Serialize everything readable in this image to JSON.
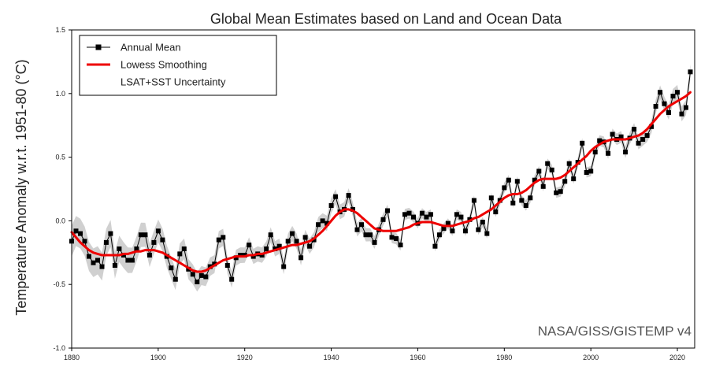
{
  "chart_data": {
    "type": "line",
    "title": "Global Mean Estimates based on Land and Ocean Data",
    "ylabel": "Temperature Anomaly w.r.t. 1951-80 (°C)",
    "xlabel": "",
    "credit": "NASA/GISS/GISTEMP v4",
    "xlim": [
      1880,
      2024
    ],
    "ylim": [
      -1.0,
      1.5
    ],
    "xticks": [
      1880,
      1900,
      1920,
      1940,
      1960,
      1980,
      2000,
      2020
    ],
    "yticks": [
      -1.0,
      -0.5,
      0.0,
      0.5,
      1.0,
      1.5
    ],
    "ytick_labels": [
      "-1.0",
      "-0.5",
      "0.0",
      "0.5",
      "1.0",
      "1.5"
    ],
    "grid": false,
    "legend": {
      "placement": "top-left",
      "entries": [
        "Annual Mean",
        "Lowess Smoothing",
        "LSAT+SST Uncertainty"
      ]
    },
    "colors": {
      "annual": "#000000",
      "lowess": "#ee0000",
      "uncertainty": "#d0d0d0"
    },
    "x": [
      1880,
      1881,
      1882,
      1883,
      1884,
      1885,
      1886,
      1887,
      1888,
      1889,
      1890,
      1891,
      1892,
      1893,
      1894,
      1895,
      1896,
      1897,
      1898,
      1899,
      1900,
      1901,
      1902,
      1903,
      1904,
      1905,
      1906,
      1907,
      1908,
      1909,
      1910,
      1911,
      1912,
      1913,
      1914,
      1915,
      1916,
      1917,
      1918,
      1919,
      1920,
      1921,
      1922,
      1923,
      1924,
      1925,
      1926,
      1927,
      1928,
      1929,
      1930,
      1931,
      1932,
      1933,
      1934,
      1935,
      1936,
      1937,
      1938,
      1939,
      1940,
      1941,
      1942,
      1943,
      1944,
      1945,
      1946,
      1947,
      1948,
      1949,
      1950,
      1951,
      1952,
      1953,
      1954,
      1955,
      1956,
      1957,
      1958,
      1959,
      1960,
      1961,
      1962,
      1963,
      1964,
      1965,
      1966,
      1967,
      1968,
      1969,
      1970,
      1971,
      1972,
      1973,
      1974,
      1975,
      1976,
      1977,
      1978,
      1979,
      1980,
      1981,
      1982,
      1983,
      1984,
      1985,
      1986,
      1987,
      1988,
      1989,
      1990,
      1991,
      1992,
      1993,
      1994,
      1995,
      1996,
      1997,
      1998,
      1999,
      2000,
      2001,
      2002,
      2003,
      2004,
      2005,
      2006,
      2007,
      2008,
      2009,
      2010,
      2011,
      2012,
      2013,
      2014,
      2015,
      2016,
      2017,
      2018,
      2019,
      2020,
      2021,
      2022,
      2023
    ],
    "series": [
      {
        "name": "Annual Mean",
        "values": [
          -0.16,
          -0.08,
          -0.1,
          -0.16,
          -0.28,
          -0.33,
          -0.31,
          -0.36,
          -0.17,
          -0.1,
          -0.35,
          -0.22,
          -0.27,
          -0.31,
          -0.31,
          -0.22,
          -0.11,
          -0.11,
          -0.27,
          -0.17,
          -0.08,
          -0.15,
          -0.28,
          -0.37,
          -0.46,
          -0.26,
          -0.22,
          -0.38,
          -0.42,
          -0.48,
          -0.43,
          -0.44,
          -0.36,
          -0.34,
          -0.15,
          -0.13,
          -0.35,
          -0.46,
          -0.29,
          -0.27,
          -0.27,
          -0.19,
          -0.28,
          -0.26,
          -0.27,
          -0.22,
          -0.11,
          -0.22,
          -0.2,
          -0.36,
          -0.16,
          -0.1,
          -0.16,
          -0.29,
          -0.13,
          -0.2,
          -0.15,
          -0.03,
          -0.0,
          -0.02,
          0.12,
          0.19,
          0.07,
          0.09,
          0.2,
          0.09,
          -0.07,
          -0.03,
          -0.11,
          -0.11,
          -0.17,
          -0.07,
          0.01,
          0.08,
          -0.13,
          -0.14,
          -0.19,
          0.05,
          0.06,
          0.03,
          -0.02,
          0.06,
          0.03,
          0.05,
          -0.2,
          -0.11,
          -0.06,
          -0.02,
          -0.08,
          0.05,
          0.03,
          -0.08,
          0.01,
          0.16,
          -0.07,
          -0.01,
          -0.1,
          0.18,
          0.07,
          0.16,
          0.26,
          0.32,
          0.14,
          0.31,
          0.16,
          0.12,
          0.18,
          0.32,
          0.39,
          0.27,
          0.45,
          0.4,
          0.22,
          0.23,
          0.31,
          0.45,
          0.33,
          0.46,
          0.61,
          0.38,
          0.39,
          0.54,
          0.63,
          0.62,
          0.53,
          0.68,
          0.64,
          0.66,
          0.54,
          0.65,
          0.72,
          0.61,
          0.64,
          0.67,
          0.74,
          0.9,
          1.01,
          0.92,
          0.85,
          0.98,
          1.01,
          0.84,
          0.89,
          1.17
        ]
      },
      {
        "name": "Lowess Smoothing",
        "values": [
          -0.09,
          -0.13,
          -0.17,
          -0.2,
          -0.23,
          -0.25,
          -0.26,
          -0.27,
          -0.27,
          -0.27,
          -0.27,
          -0.27,
          -0.26,
          -0.26,
          -0.25,
          -0.24,
          -0.24,
          -0.23,
          -0.23,
          -0.23,
          -0.24,
          -0.25,
          -0.27,
          -0.29,
          -0.31,
          -0.33,
          -0.35,
          -0.37,
          -0.39,
          -0.4,
          -0.4,
          -0.39,
          -0.37,
          -0.35,
          -0.33,
          -0.31,
          -0.3,
          -0.29,
          -0.28,
          -0.28,
          -0.28,
          -0.27,
          -0.27,
          -0.26,
          -0.26,
          -0.25,
          -0.24,
          -0.23,
          -0.22,
          -0.21,
          -0.2,
          -0.19,
          -0.19,
          -0.18,
          -0.17,
          -0.16,
          -0.14,
          -0.11,
          -0.08,
          -0.04,
          0.0,
          0.04,
          0.07,
          0.09,
          0.09,
          0.08,
          0.06,
          0.03,
          0.0,
          -0.03,
          -0.06,
          -0.07,
          -0.08,
          -0.08,
          -0.08,
          -0.08,
          -0.07,
          -0.06,
          -0.05,
          -0.03,
          -0.02,
          -0.01,
          -0.01,
          -0.01,
          -0.02,
          -0.03,
          -0.04,
          -0.04,
          -0.04,
          -0.03,
          -0.02,
          -0.01,
          0.0,
          0.02,
          0.03,
          0.05,
          0.07,
          0.09,
          0.12,
          0.15,
          0.18,
          0.2,
          0.21,
          0.21,
          0.22,
          0.24,
          0.27,
          0.3,
          0.32,
          0.33,
          0.33,
          0.33,
          0.33,
          0.34,
          0.36,
          0.39,
          0.42,
          0.45,
          0.48,
          0.51,
          0.55,
          0.58,
          0.6,
          0.62,
          0.63,
          0.64,
          0.64,
          0.64,
          0.64,
          0.65,
          0.66,
          0.67,
          0.69,
          0.72,
          0.76,
          0.8,
          0.84,
          0.87,
          0.9,
          0.92,
          0.94,
          0.96,
          0.98,
          1.01
        ]
      }
    ],
    "uncertainty": {
      "name": "LSAT+SST Uncertainty",
      "points": [
        {
          "x": 1880,
          "half_width": 0.12
        },
        {
          "x": 1900,
          "half_width": 0.09
        },
        {
          "x": 1920,
          "half_width": 0.06
        },
        {
          "x": 1940,
          "half_width": 0.06
        },
        {
          "x": 1960,
          "half_width": 0.04
        },
        {
          "x": 1980,
          "half_width": 0.04
        },
        {
          "x": 2000,
          "half_width": 0.04
        },
        {
          "x": 2023,
          "half_width": 0.06
        }
      ]
    }
  }
}
